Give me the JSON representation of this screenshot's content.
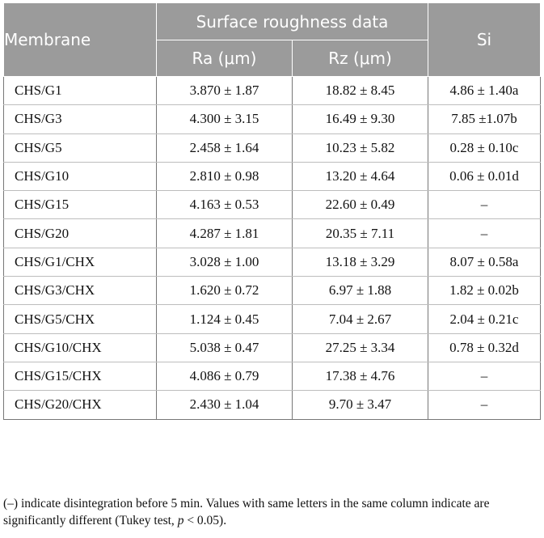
{
  "table": {
    "headers": {
      "membrane": "Membrane",
      "surface_group": "Surface roughness data",
      "si": "Si",
      "ra": "Ra (μm)",
      "rz": "Rz (μm)"
    },
    "rows": [
      {
        "membrane": "CHS/G1",
        "ra": "3.870 ± 1.87",
        "rz": "18.82 ± 8.45",
        "si": "4.86 ± 1.40a"
      },
      {
        "membrane": "CHS/G3",
        "ra": "4.300 ± 3.15",
        "rz": "16.49 ± 9.30",
        "si": "7.85 ±1.07b"
      },
      {
        "membrane": "CHS/G5",
        "ra": "2.458 ± 1.64",
        "rz": "10.23 ± 5.82",
        "si": "0.28 ± 0.10c"
      },
      {
        "membrane": "CHS/G10",
        "ra": "2.810 ± 0.98",
        "rz": "13.20 ± 4.64",
        "si": "0.06 ± 0.01d"
      },
      {
        "membrane": "CHS/G15",
        "ra": "4.163 ± 0.53",
        "rz": "22.60 ± 0.49",
        "si": "–"
      },
      {
        "membrane": "CHS/G20",
        "ra": "4.287 ± 1.81",
        "rz": "20.35 ± 7.11",
        "si": "–"
      },
      {
        "membrane": "CHS/G1/CHX",
        "ra": "3.028 ± 1.00",
        "rz": "13.18 ± 3.29",
        "si": "8.07 ± 0.58a"
      },
      {
        "membrane": "CHS/G3/CHX",
        "ra": "1.620 ± 0.72",
        "rz": "6.97 ± 1.88",
        "si": "1.82 ± 0.02b"
      },
      {
        "membrane": "CHS/G5/CHX",
        "ra": "1.124 ± 0.45",
        "rz": "7.04 ± 2.67",
        "si": "2.04 ± 0.21c"
      },
      {
        "membrane": "CHS/G10/CHX",
        "ra": "5.038 ± 0.47",
        "rz": "27.25 ± 3.34",
        "si": "0.78 ± 0.32d"
      },
      {
        "membrane": "CHS/G15/CHX",
        "ra": "4.086 ± 0.79",
        "rz": "17.38 ± 4.76",
        "si": "–"
      },
      {
        "membrane": "CHS/G20/CHX",
        "ra": "2.430 ± 1.04",
        "rz": "9.70 ± 3.47",
        "si": "–"
      }
    ]
  },
  "footnote": {
    "text_before": "(–) indicate disintegration before 5 min. Values with same letters in the same column indicate are significantly different (Tukey test, ",
    "p_symbol": "p",
    "text_after": " < 0.05)."
  }
}
